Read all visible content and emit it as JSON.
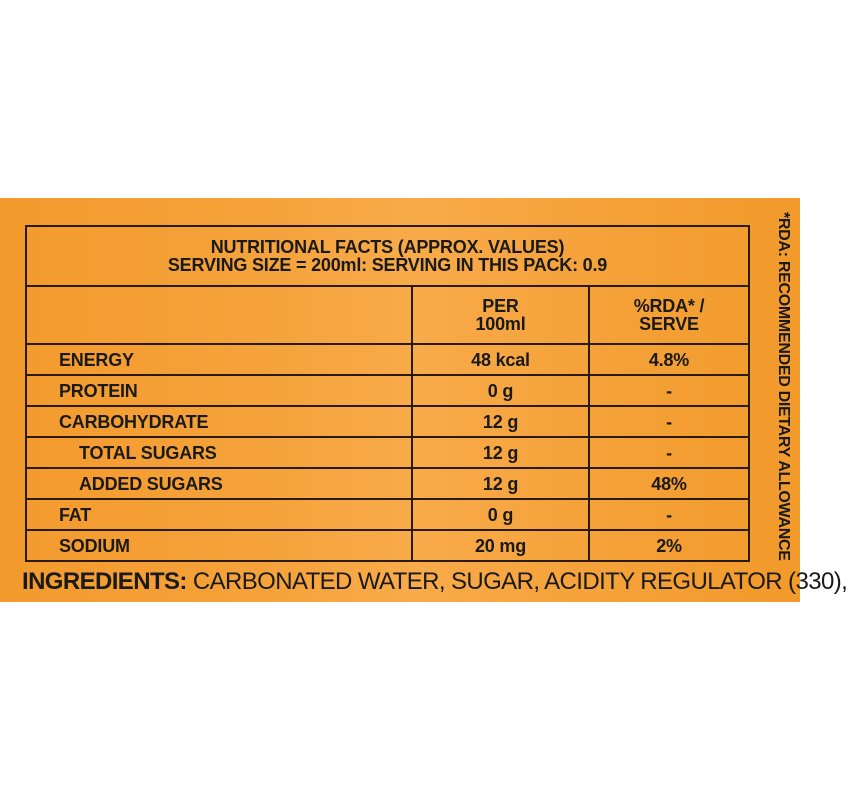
{
  "table": {
    "title": "NUTRITIONAL FACTS  (APPROX. VALUES)",
    "serving": "SERVING SIZE = 200ml: SERVING IN THIS PACK: 0.9",
    "col_per_line1": "PER",
    "col_per_line2": "100ml",
    "col_rda_line1": "%RDA* /",
    "col_rda_line2": "SERVE",
    "rows": [
      {
        "name": "ENERGY",
        "value": "48 kcal",
        "rda": "4.8%"
      },
      {
        "name": "PROTEIN",
        "value": "0 g",
        "rda": "-"
      },
      {
        "name": "CARBOHYDRATE",
        "value": "12 g",
        "rda": "-"
      },
      {
        "name": "TOTAL SUGARS",
        "value": "12 g",
        "rda": "-"
      },
      {
        "name": "ADDED SUGARS",
        "value": "12 g",
        "rda": "48%"
      },
      {
        "name": "FAT",
        "value": "0 g",
        "rda": "-"
      },
      {
        "name": "SODIUM",
        "value": "20 mg",
        "rda": "2%"
      }
    ]
  },
  "ingredients": {
    "label": "INGREDIENTS:",
    "text": " CARBONATED WATER, SUGAR, ACIDITY REGULATOR (330),"
  },
  "rda_note": "*RDA: RECOMMENDED DIETARY ALLOWANCE",
  "colors": {
    "panel": "#f5a33c",
    "text": "#1a1a1a",
    "border": "#2a1a0a"
  }
}
